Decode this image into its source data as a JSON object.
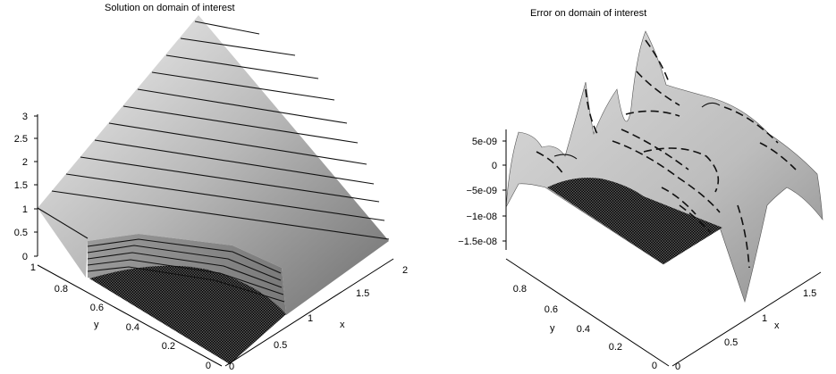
{
  "chart_data": [
    {
      "type": "surface3d",
      "title": "Solution on domain of interest",
      "xlabel": "x",
      "ylabel": "y",
      "x_ticks": [
        "0",
        "0.5",
        "1",
        "1.5",
        "2"
      ],
      "y_ticks": [
        "0",
        "0.2",
        "0.4",
        "0.6",
        "0.8",
        "1"
      ],
      "z_ticks": [
        "0",
        "0.5",
        "1",
        "1.5",
        "2",
        "2.5",
        "3"
      ],
      "xlim": [
        0,
        2
      ],
      "ylim": [
        0,
        1
      ],
      "zlim": [
        0,
        3
      ]
    },
    {
      "type": "surface3d",
      "title": "Error on domain of interest",
      "xlabel": "x",
      "ylabel": "y",
      "x_ticks": [
        "0",
        "0.5",
        "1",
        "1.5"
      ],
      "y_ticks": [
        "0",
        "0.2",
        "0.4",
        "0.6",
        "0.8"
      ],
      "z_ticks": [
        "5e-09",
        "0",
        "−5e-09",
        "−1e-08",
        "−1.5e-08"
      ],
      "zlim": [
        -1.5e-08,
        5e-09
      ]
    }
  ]
}
